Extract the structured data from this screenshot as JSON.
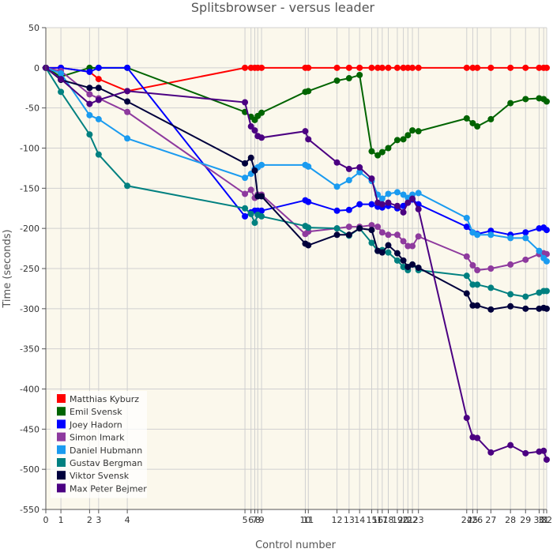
{
  "chart_data": {
    "type": "line",
    "title": "Splitsbrowser - versus leader",
    "xlabel": "Control number",
    "ylabel": "Time (seconds)",
    "ylim": [
      -550,
      50
    ],
    "yticks": [
      50,
      0,
      -50,
      -100,
      -150,
      -200,
      -250,
      -300,
      -350,
      -400,
      -450,
      -500,
      -550
    ],
    "grid": true,
    "legend_position": "bottom-left",
    "control_labels": [
      "0",
      "1",
      "2",
      "3",
      "4",
      "5",
      "6",
      "7",
      "8",
      "9",
      "10",
      "11",
      "12",
      "13",
      "14",
      "15",
      "16",
      "17",
      "18",
      "19",
      "20",
      "21",
      "22",
      "23",
      "24",
      "25",
      "26",
      "27",
      "28",
      "29",
      "30",
      "31",
      "32"
    ],
    "control_positions": [
      0,
      1,
      2.9,
      3.5,
      5.4,
      13.2,
      13.6,
      13.85,
      14.05,
      14.3,
      17.2,
      17.4,
      19.3,
      20.1,
      20.8,
      21.6,
      22,
      22.3,
      22.7,
      23.3,
      23.7,
      24,
      24.3,
      24.7,
      27.9,
      28.3,
      28.6,
      29.5,
      30.8,
      31.8,
      32.7,
      33,
      33.2
    ],
    "xlim": [
      0,
      33.2
    ],
    "series": [
      {
        "name": "Matthias Kyburz",
        "color": "#ff0000",
        "values": [
          0,
          0,
          -5,
          -14,
          -29,
          0,
          0,
          0,
          0,
          0,
          0,
          0,
          0,
          0,
          0,
          0,
          0,
          0,
          0,
          0,
          0,
          0,
          0,
          0,
          0,
          0,
          0,
          0,
          0,
          0,
          0,
          0,
          0
        ]
      },
      {
        "name": "Emil Svensk",
        "color": "#006400",
        "values": [
          0,
          -11,
          0,
          0,
          0,
          -55,
          -61,
          -65,
          -60,
          -56,
          -30,
          -29,
          -16,
          -13,
          -9,
          -104,
          -109,
          -105,
          -100,
          -90,
          -89,
          -84,
          -78,
          -79,
          -63,
          -69,
          -73,
          -64,
          -44,
          -39,
          -38,
          -39,
          -42
        ]
      },
      {
        "name": "Joey Hadorn",
        "color": "#0000ff",
        "values": [
          0,
          0,
          -5,
          0,
          0,
          -185,
          -180,
          -178,
          -178,
          -178,
          -165,
          -167,
          -178,
          -177,
          -170,
          -170,
          -173,
          -174,
          -172,
          -175,
          -172,
          -168,
          -164,
          -170,
          -198,
          -205,
          -207,
          -203,
          -208,
          -205,
          -200,
          -199,
          -202
        ]
      },
      {
        "name": "Simon Imark",
        "color": "#8e3a9e",
        "values": [
          0,
          -4,
          -33,
          -38,
          -55,
          -157,
          -152,
          -162,
          -158,
          -158,
          -207,
          -204,
          -200,
          -198,
          -198,
          -196,
          -198,
          -205,
          -208,
          -208,
          -216,
          -222,
          -222,
          -210,
          -235,
          -246,
          -252,
          -250,
          -245,
          -239,
          -232,
          -231,
          -232
        ]
      },
      {
        "name": "Daniel Hubmann",
        "color": "#1a9bf0",
        "values": [
          0,
          -7,
          -59,
          -64,
          -88,
          -137,
          -132,
          -126,
          -124,
          -121,
          -121,
          -123,
          -148,
          -140,
          -130,
          -141,
          -158,
          -163,
          -157,
          -155,
          -158,
          -162,
          -158,
          -156,
          -187,
          -205,
          -208,
          -208,
          -212,
          -212,
          -228,
          -237,
          -241
        ]
      },
      {
        "name": "Gustav Bergman",
        "color": "#008080",
        "values": [
          0,
          -30,
          -83,
          -108,
          -147,
          -175,
          -182,
          -193,
          -183,
          -185,
          -197,
          -199,
          -200,
          -209,
          -200,
          -218,
          -228,
          -227,
          -230,
          -240,
          -248,
          -252,
          -245,
          -252,
          -259,
          -270,
          -270,
          -274,
          -282,
          -285,
          -280,
          -278,
          -278
        ]
      },
      {
        "name": "Viktor Svensk",
        "color": "#00003c",
        "values": [
          0,
          -15,
          -25,
          -25,
          -42,
          -119,
          -112,
          -128,
          -160,
          -160,
          -219,
          -221,
          -208,
          -208,
          -200,
          -202,
          -228,
          -230,
          -221,
          -231,
          -240,
          -248,
          -245,
          -249,
          -281,
          -296,
          -296,
          -301,
          -297,
          -300,
          -300,
          -299,
          -300
        ]
      },
      {
        "name": "Max Peter Bejmer",
        "color": "#4b0082",
        "values": [
          0,
          -14,
          -45,
          -40,
          -29,
          -43,
          -73,
          -78,
          -85,
          -87,
          -79,
          -89,
          -118,
          -126,
          -124,
          -138,
          -168,
          -170,
          -168,
          -172,
          -180,
          -168,
          -163,
          -176,
          -436,
          -460,
          -461,
          -479,
          -470,
          -480,
          -478,
          -477,
          -488
        ]
      }
    ]
  }
}
